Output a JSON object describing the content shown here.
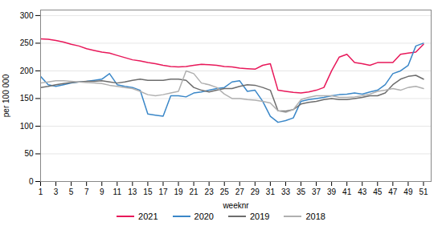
{
  "chart_data": {
    "type": "line",
    "xlabel": "weeknr",
    "ylabel": "per 100 000",
    "x": [
      1,
      2,
      3,
      4,
      5,
      6,
      7,
      8,
      9,
      10,
      11,
      12,
      13,
      14,
      15,
      16,
      17,
      18,
      19,
      20,
      21,
      22,
      23,
      24,
      25,
      26,
      27,
      28,
      29,
      30,
      31,
      32,
      33,
      34,
      35,
      36,
      37,
      38,
      39,
      40,
      41,
      42,
      43,
      44,
      45,
      46,
      47,
      48,
      49,
      50,
      51
    ],
    "xlim": [
      1,
      52
    ],
    "xticks": [
      1,
      3,
      5,
      7,
      9,
      11,
      13,
      15,
      17,
      19,
      21,
      23,
      25,
      27,
      29,
      31,
      33,
      35,
      37,
      39,
      41,
      43,
      45,
      47,
      49,
      51
    ],
    "ylim": [
      0,
      310
    ],
    "yticks": [
      0,
      50,
      100,
      150,
      200,
      250,
      300
    ],
    "grid": true,
    "legend": "bottom",
    "series": [
      {
        "name": "2021",
        "color": "#e8185a",
        "values": [
          258,
          257,
          255,
          252,
          248,
          245,
          240,
          237,
          234,
          232,
          228,
          224,
          220,
          218,
          215,
          213,
          210,
          208,
          207,
          208,
          210,
          212,
          211,
          210,
          208,
          207,
          205,
          204,
          203,
          210,
          213,
          165,
          163,
          161,
          160,
          162,
          165,
          170,
          200,
          225,
          230,
          215,
          213,
          210,
          215,
          215,
          215,
          230,
          232,
          234,
          248
        ]
      },
      {
        "name": "2020",
        "color": "#3a87c8",
        "values": [
          190,
          175,
          172,
          175,
          178,
          180,
          181,
          183,
          185,
          195,
          175,
          172,
          170,
          165,
          122,
          120,
          118,
          155,
          155,
          153,
          160,
          162,
          165,
          168,
          170,
          180,
          182,
          163,
          165,
          145,
          118,
          107,
          110,
          115,
          145,
          148,
          150,
          152,
          155,
          157,
          158,
          160,
          158,
          162,
          165,
          175,
          195,
          200,
          210,
          245,
          250
        ]
      },
      {
        "name": "2019",
        "color": "#6d6d6d",
        "values": [
          170,
          172,
          175,
          177,
          179,
          180,
          181,
          181,
          182,
          180,
          178,
          180,
          183,
          185,
          183,
          183,
          183,
          185,
          185,
          183,
          170,
          165,
          162,
          165,
          168,
          168,
          172,
          175,
          174,
          170,
          165,
          128,
          127,
          130,
          140,
          143,
          145,
          148,
          150,
          148,
          148,
          150,
          152,
          155,
          155,
          160,
          175,
          185,
          190,
          192,
          185
        ]
      },
      {
        "name": "2018",
        "color": "#b0b0b0",
        "values": [
          178,
          180,
          182,
          182,
          181,
          180,
          179,
          178,
          177,
          174,
          172,
          170,
          168,
          163,
          157,
          155,
          157,
          160,
          163,
          200,
          195,
          178,
          175,
          170,
          158,
          150,
          150,
          148,
          147,
          145,
          142,
          128,
          125,
          130,
          148,
          152,
          155,
          155,
          155,
          152,
          152,
          153,
          155,
          158,
          163,
          165,
          168,
          165,
          170,
          172,
          168
        ]
      }
    ]
  }
}
